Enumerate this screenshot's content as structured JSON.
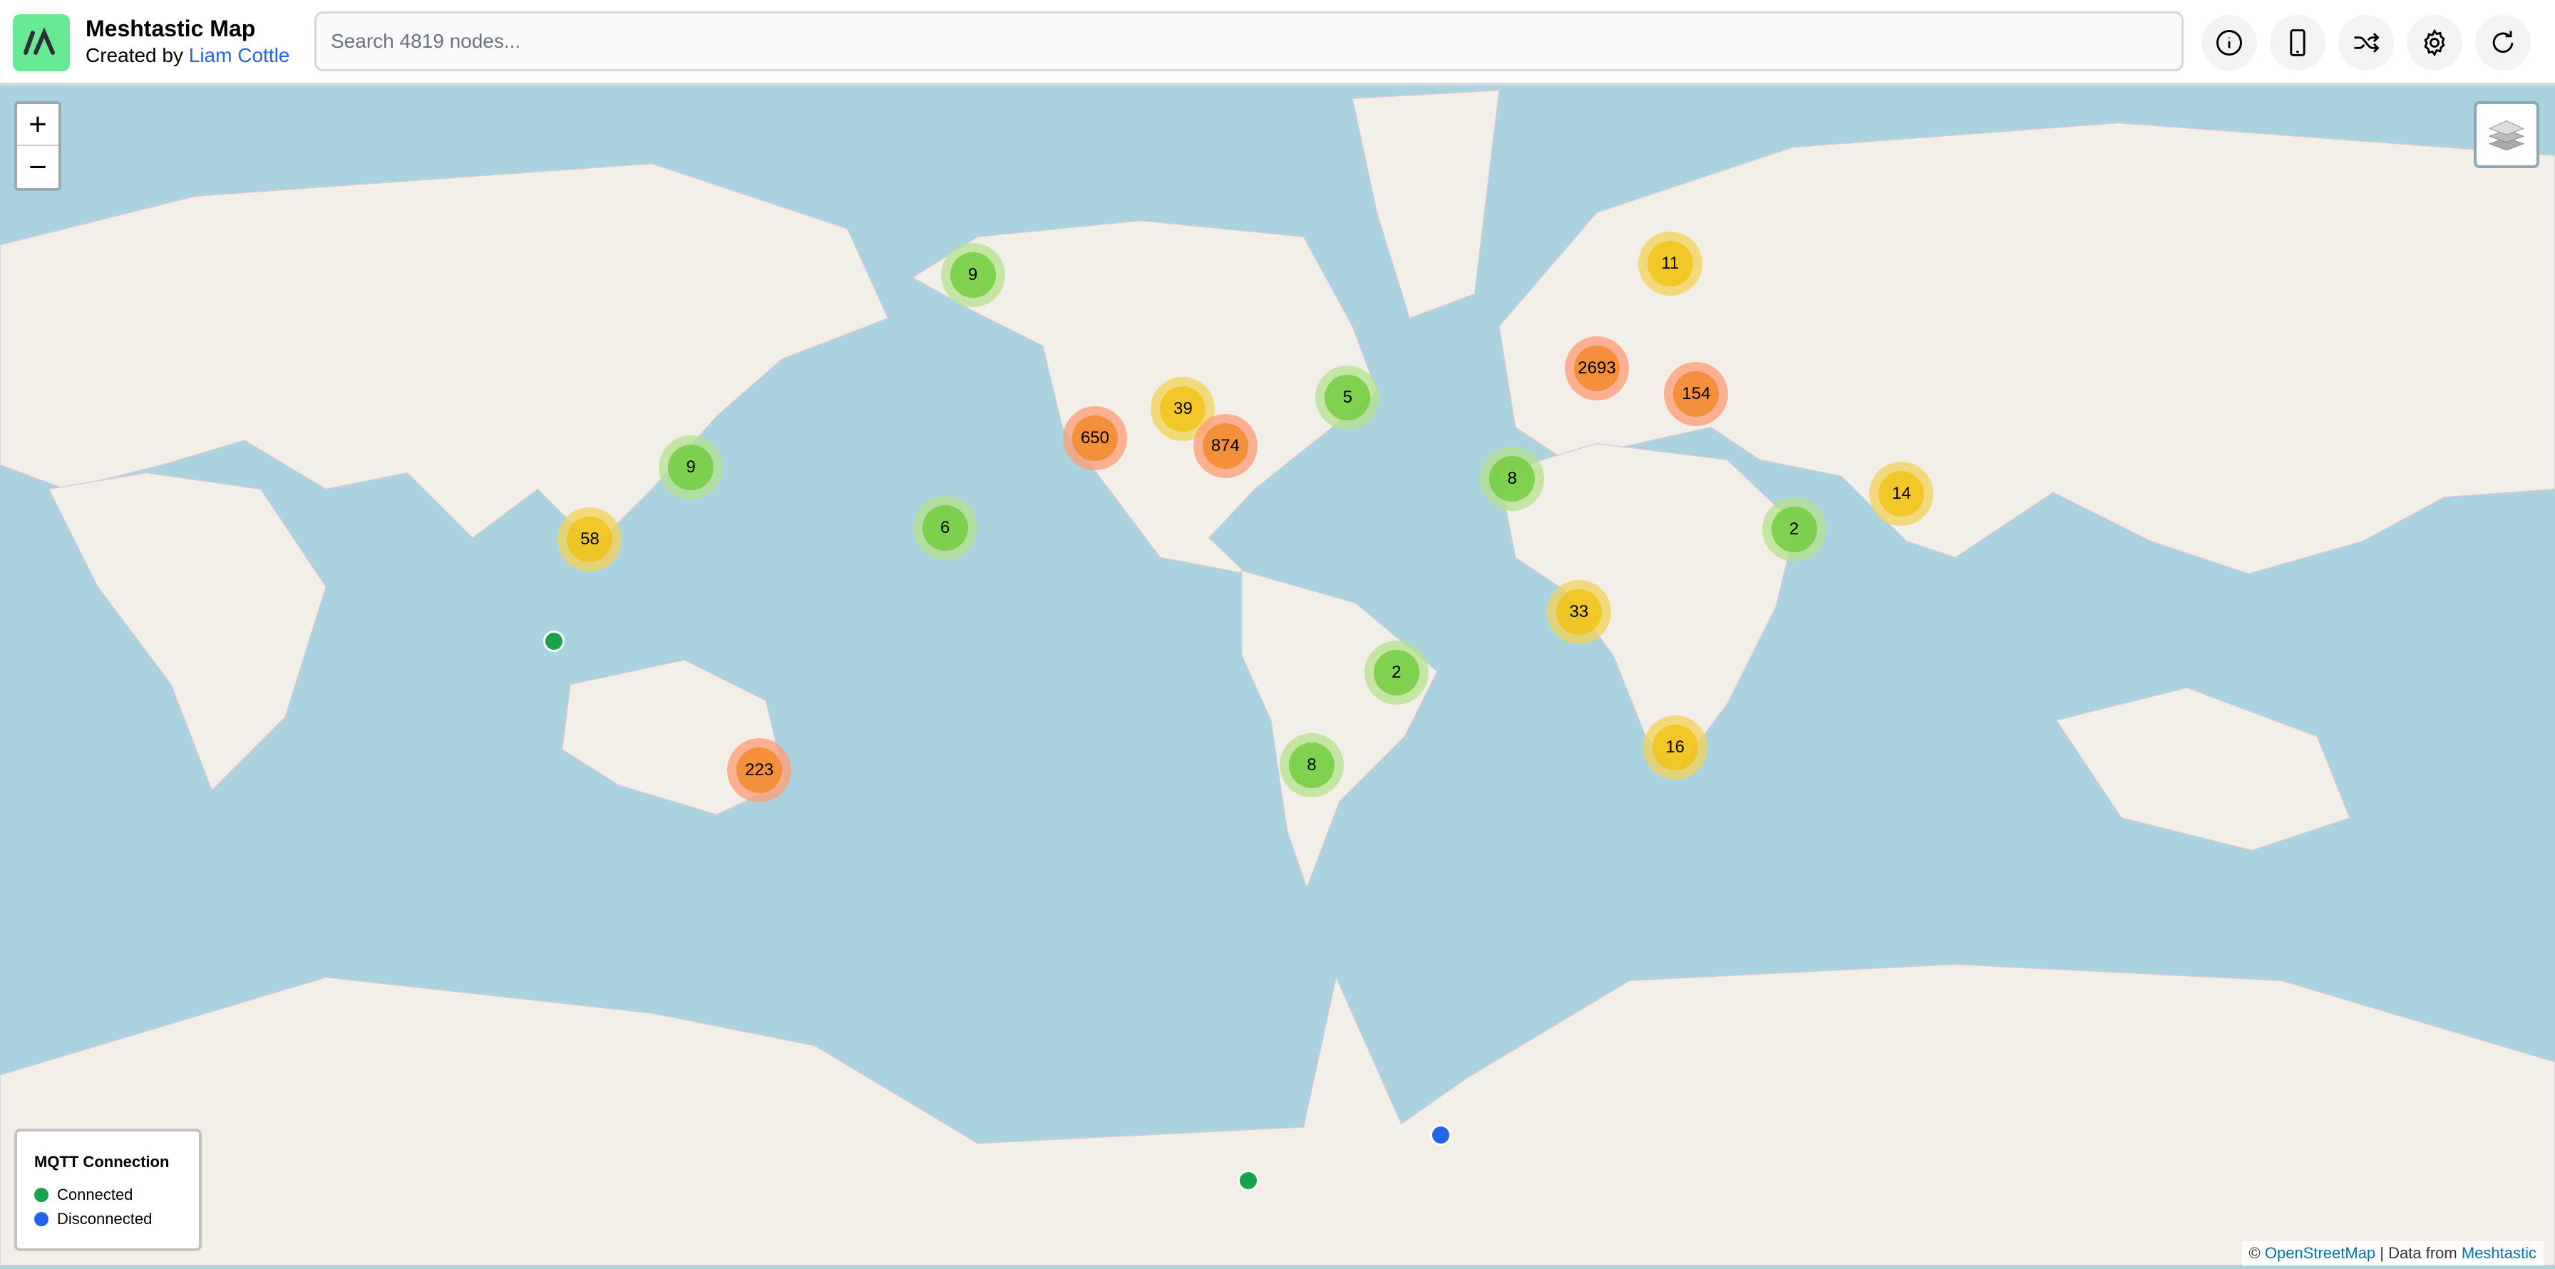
{
  "header": {
    "title": "Meshtastic Map",
    "created_by": "Created by",
    "author": "Liam Cottle",
    "search_placeholder": "Search 4819 nodes...",
    "buttons": [
      {
        "icon": "info-icon"
      },
      {
        "icon": "phone-icon"
      },
      {
        "icon": "shuffle-icon"
      },
      {
        "icon": "gear-icon"
      },
      {
        "icon": "refresh-icon"
      }
    ]
  },
  "map": {
    "zoom_in": "+",
    "zoom_out": "−",
    "clusters": [
      "9",
      "11",
      "2693",
      "154",
      "5",
      "39",
      "650",
      "874",
      "9",
      "8",
      "14",
      "2",
      "6",
      "58",
      "33",
      "2",
      "16",
      "8",
      "223"
    ],
    "colors": {
      "water": "#aad3df",
      "land": "#f2efe9",
      "connected": "#16a34a",
      "disconnected": "#2563eb"
    }
  },
  "legend": {
    "title": "MQTT Connection",
    "items": [
      {
        "label": "Connected",
        "color": "#16a34a"
      },
      {
        "label": "Disconnected",
        "color": "#2563eb"
      }
    ]
  },
  "attribution": {
    "copyright": "©",
    "osm": "OpenStreetMap",
    "sep": "| Data from",
    "meshtastic": "Meshtastic"
  }
}
